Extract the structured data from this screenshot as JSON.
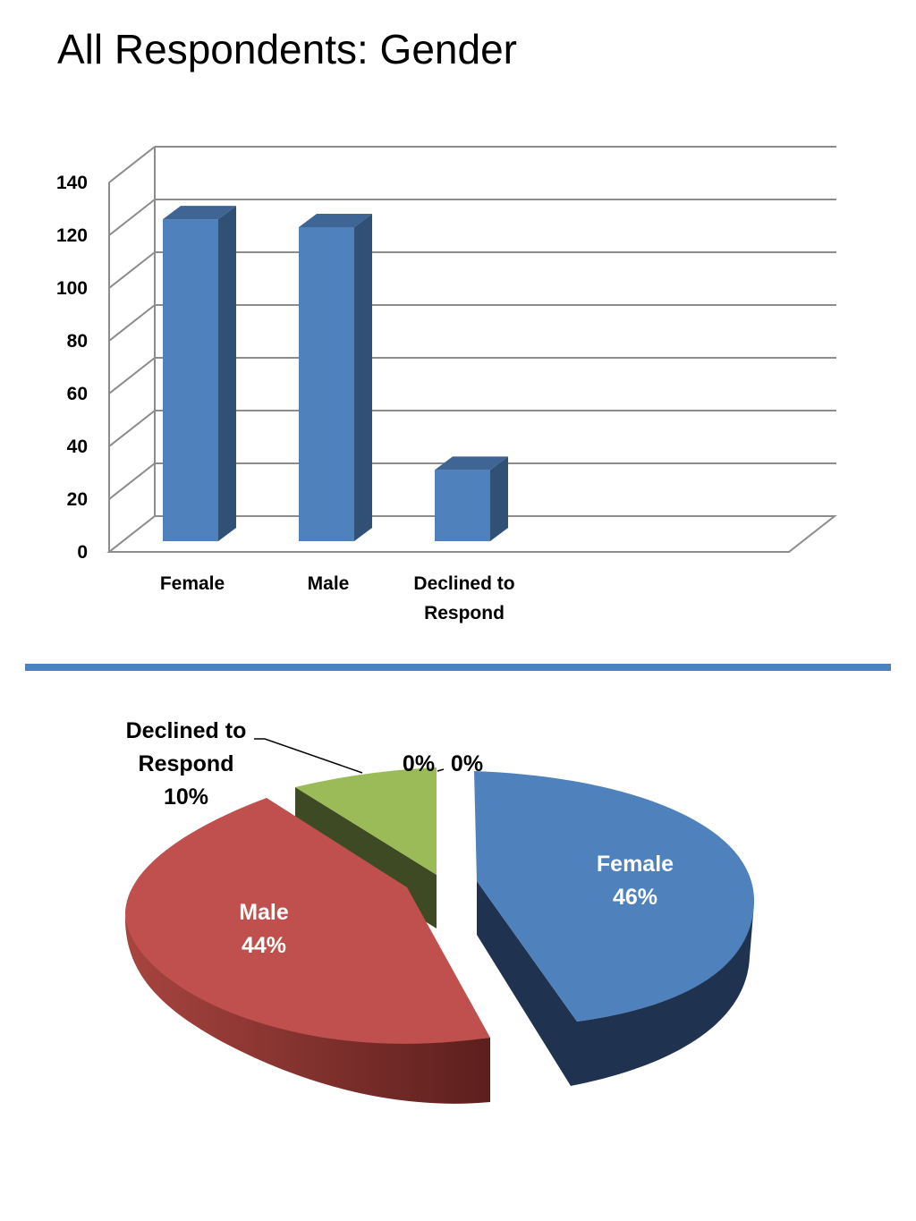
{
  "page": {
    "title": "All Respondents: Gender"
  },
  "chart_data": [
    {
      "type": "bar",
      "categories": [
        "Female",
        "Male",
        "Declined to Respond"
      ],
      "category_lines": [
        [
          "Female"
        ],
        [
          "Male"
        ],
        [
          "Declined to",
          "Respond"
        ]
      ],
      "values": [
        122,
        119,
        27
      ],
      "ylim": [
        0,
        140
      ],
      "yticks": [
        "0",
        "20",
        "40",
        "60",
        "80",
        "100",
        "120",
        "140"
      ],
      "grid": true,
      "style": "3d-column",
      "color": "#4F81BD"
    },
    {
      "type": "pie",
      "style": "3d-exploded",
      "slices": [
        {
          "label": "Female",
          "percent": 46,
          "percent_label": "46%",
          "color": "#4F81BD"
        },
        {
          "label": "Male",
          "percent": 44,
          "percent_label": "44%",
          "color": "#C0504D"
        },
        {
          "label": "Declined to Respond",
          "label_lines": [
            "Declined to",
            "Respond"
          ],
          "percent": 10,
          "percent_label": "10%",
          "color": "#9BBB59"
        }
      ],
      "zero_labels": [
        "0%",
        "0%"
      ]
    }
  ]
}
